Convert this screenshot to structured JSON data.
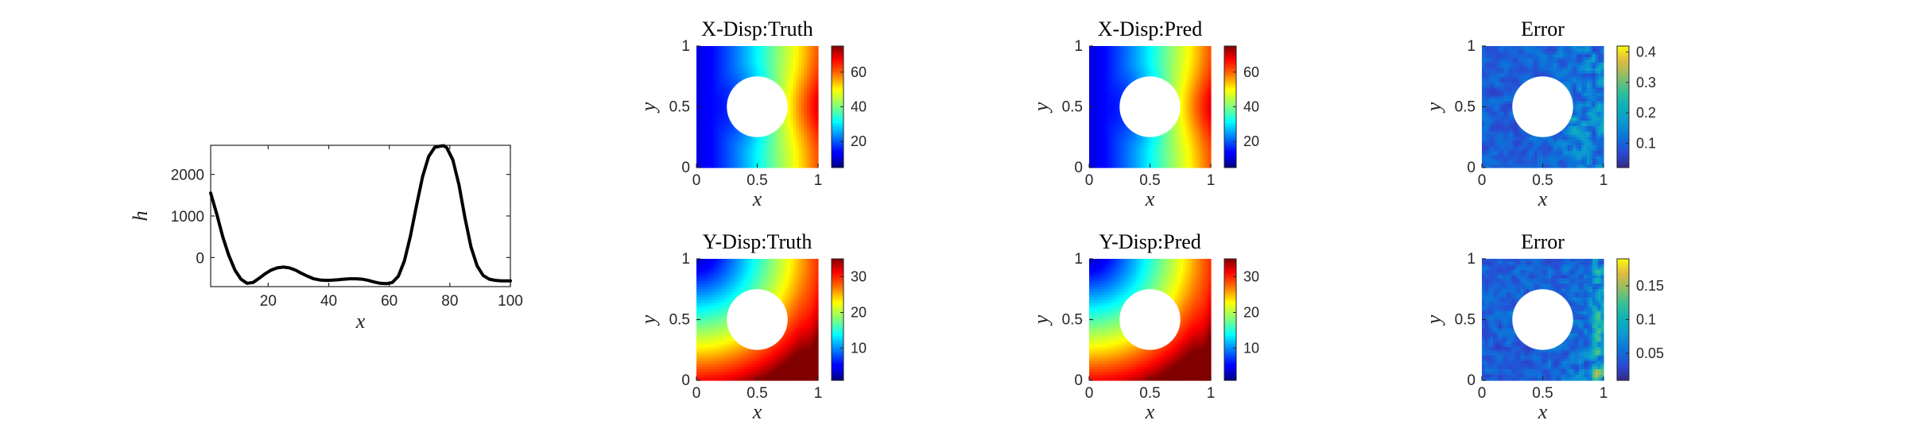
{
  "chart_data": [
    {
      "type": "line",
      "xlabel": "x",
      "ylabel": "h",
      "xlim": [
        1,
        100
      ],
      "ylim": [
        -700,
        2700
      ],
      "xticks": [
        20,
        40,
        60,
        80,
        100
      ],
      "yticks": [
        0,
        1000,
        2000
      ],
      "grid": false,
      "series": [
        {
          "x": [
            1,
            3,
            5,
            7,
            9,
            11,
            13,
            15,
            17,
            19,
            21,
            23,
            25,
            27,
            29,
            31,
            33,
            35,
            37,
            39,
            41,
            43,
            45,
            47,
            49,
            51,
            53,
            55,
            57,
            59,
            61,
            63,
            65,
            67,
            69,
            71,
            73,
            75,
            77,
            78,
            79,
            81,
            83,
            85,
            87,
            89,
            91,
            93,
            95,
            97,
            100
          ],
          "y": [
            1550,
            1050,
            500,
            50,
            -300,
            -520,
            -620,
            -600,
            -500,
            -390,
            -300,
            -250,
            -230,
            -250,
            -300,
            -380,
            -450,
            -510,
            -540,
            -550,
            -545,
            -535,
            -520,
            -510,
            -510,
            -520,
            -550,
            -590,
            -620,
            -630,
            -600,
            -450,
            -80,
            520,
            1250,
            1950,
            2430,
            2650,
            2680,
            2690,
            2640,
            2350,
            1750,
            950,
            250,
            -200,
            -430,
            -520,
            -550,
            -560,
            -560
          ],
          "color": "#000000"
        }
      ]
    },
    {
      "type": "heatmap",
      "title": "X-Disp:Truth",
      "xlabel": "x",
      "ylabel": "y",
      "xlim": [
        0,
        1
      ],
      "ylim": [
        0,
        1
      ],
      "xticks": [
        "0",
        "0.5",
        "1"
      ],
      "yticks": [
        "0",
        "0.5",
        "1"
      ],
      "colormap": "jet",
      "clim": [
        5,
        75
      ],
      "colorbar_ticks": [
        20,
        40,
        60
      ],
      "hole": {
        "center": [
          0.5,
          0.5
        ],
        "radius": 0.25
      },
      "field": "x-displacement"
    },
    {
      "type": "heatmap",
      "title": "X-Disp:Pred",
      "xlabel": "x",
      "ylabel": "y",
      "xlim": [
        0,
        1
      ],
      "ylim": [
        0,
        1
      ],
      "xticks": [
        "0",
        "0.5",
        "1"
      ],
      "yticks": [
        "0",
        "0.5",
        "1"
      ],
      "colormap": "jet",
      "clim": [
        5,
        75
      ],
      "colorbar_ticks": [
        20,
        40,
        60
      ],
      "hole": {
        "center": [
          0.5,
          0.5
        ],
        "radius": 0.25
      },
      "field": "x-displacement"
    },
    {
      "type": "heatmap",
      "title": "Error",
      "xlabel": "x",
      "ylabel": "y",
      "xlim": [
        0,
        1
      ],
      "ylim": [
        0,
        1
      ],
      "xticks": [
        "0",
        "0.5",
        "1"
      ],
      "yticks": [
        "0",
        "0.5",
        "1"
      ],
      "colormap": "parula",
      "clim": [
        0.02,
        0.42
      ],
      "colorbar_ticks": [
        0.1,
        0.2,
        0.3,
        0.4
      ],
      "hole": {
        "center": [
          0.5,
          0.5
        ],
        "radius": 0.25
      },
      "field": "x-error"
    },
    {
      "type": "heatmap",
      "title": "Y-Disp:Truth",
      "xlabel": "x",
      "ylabel": "y",
      "xlim": [
        0,
        1
      ],
      "ylim": [
        0,
        1
      ],
      "xticks": [
        "0",
        "0.5",
        "1"
      ],
      "yticks": [
        "0",
        "0.5",
        "1"
      ],
      "colormap": "jet",
      "clim": [
        1,
        35
      ],
      "colorbar_ticks": [
        10,
        20,
        30
      ],
      "hole": {
        "center": [
          0.5,
          0.5
        ],
        "radius": 0.25
      },
      "field": "y-displacement"
    },
    {
      "type": "heatmap",
      "title": "Y-Disp:Pred",
      "xlabel": "x",
      "ylabel": "y",
      "xlim": [
        0,
        1
      ],
      "ylim": [
        0,
        1
      ],
      "xticks": [
        "0",
        "0.5",
        "1"
      ],
      "yticks": [
        "0",
        "0.5",
        "1"
      ],
      "colormap": "jet",
      "clim": [
        1,
        35
      ],
      "colorbar_ticks": [
        10,
        20,
        30
      ],
      "hole": {
        "center": [
          0.5,
          0.5
        ],
        "radius": 0.25
      },
      "field": "y-displacement"
    },
    {
      "type": "heatmap",
      "title": "Error",
      "xlabel": "x",
      "ylabel": "y",
      "xlim": [
        0,
        1
      ],
      "ylim": [
        0,
        1
      ],
      "xticks": [
        "0",
        "0.5",
        "1"
      ],
      "yticks": [
        "0",
        "0.5",
        "1"
      ],
      "colormap": "parula",
      "clim": [
        0.01,
        0.19
      ],
      "colorbar_ticks": [
        0.05,
        0.1,
        0.15
      ],
      "hole": {
        "center": [
          0.5,
          0.5
        ],
        "radius": 0.25
      },
      "field": "y-error"
    }
  ]
}
